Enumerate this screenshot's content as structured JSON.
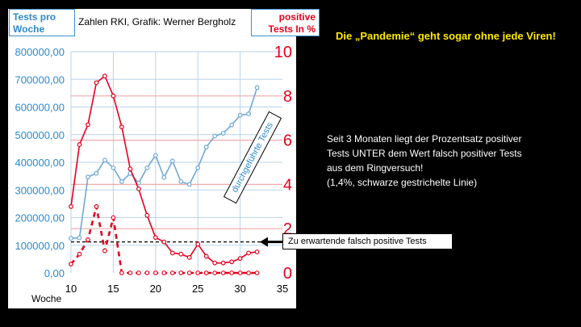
{
  "left_title": "Tests pro Woche",
  "credit": "Zahlen RKI, Grafik: Werner Bergholz",
  "right_title": "positive Tests In %",
  "headline": "Die „Pandemie“ geht sogar ohne jede Viren!",
  "commentary": [
    "Seit 3 Monaten liegt der Prozentsatz positiver",
    "Tests UNTER dem Wert falsch positiver Tests",
    "aus dem Ringversuch!",
    "(1,4%, schwarze gestrichelte Linie)"
  ],
  "callout": "Zu erwartende falsch positive Tests",
  "xlabel": "Woche",
  "rotated_label": "durchgeführte Tests",
  "colors": {
    "tests": "#6fa8d6",
    "positive": "#e4001b",
    "reference": "#000000",
    "left_axis": "#2e89c9",
    "right_axis": "#e4001b",
    "background": "#000000",
    "headline": "#ffe800"
  },
  "chart_data": {
    "type": "line",
    "x_ticks": [
      10,
      15,
      20,
      25,
      30,
      35
    ],
    "y_left_ticks": [
      "0,00",
      "100000,00",
      "200000,00",
      "300000,00",
      "400000,00",
      "500000,00",
      "600000,00",
      "700000,00",
      "800000,00"
    ],
    "y_left_range": [
      0,
      800000
    ],
    "y_right_ticks": [
      "0",
      "2",
      "4",
      "6",
      "8",
      "10"
    ],
    "y_right_range": [
      0,
      10
    ],
    "xlim": [
      10,
      35
    ],
    "series": [
      {
        "axis": "left",
        "style": "solid-blue",
        "x": [
          10,
          11,
          12,
          13,
          14,
          15,
          16,
          17,
          18,
          19,
          20,
          21,
          22,
          23,
          24,
          25,
          26,
          27,
          28,
          29,
          30,
          31,
          32
        ],
        "y": [
          125000,
          127000,
          347000,
          360000,
          408000,
          380000,
          330000,
          360000,
          325000,
          380000,
          425000,
          345000,
          405000,
          330000,
          320000,
          380000,
          455000,
          495000,
          505000,
          535000,
          570000,
          575000,
          670000
        ]
      },
      {
        "axis": "right",
        "style": "solid-red",
        "x": [
          10,
          11,
          12,
          13,
          14,
          15,
          16,
          17,
          18,
          19,
          20,
          21,
          22,
          23,
          24,
          25,
          26,
          27,
          28,
          29,
          30,
          31,
          32
        ],
        "y": [
          3.0,
          5.8,
          6.7,
          8.6,
          8.9,
          8.0,
          6.6,
          4.7,
          3.8,
          2.6,
          1.6,
          1.4,
          0.9,
          0.85,
          0.7,
          1.3,
          0.75,
          0.45,
          0.45,
          0.5,
          0.65,
          0.9,
          0.95
        ]
      },
      {
        "axis": "right",
        "style": "dashed-red",
        "x": [
          10,
          11,
          12,
          13,
          14,
          15,
          16,
          17,
          18,
          19,
          20,
          21,
          22,
          23,
          24,
          25,
          26,
          27,
          28,
          29,
          30,
          31,
          32
        ],
        "y": [
          0.4,
          0.85,
          1.5,
          3.0,
          1.0,
          2.5,
          0,
          0,
          0,
          0,
          0,
          0,
          0,
          0,
          0,
          0,
          0,
          0,
          0,
          0,
          0,
          0,
          0
        ]
      }
    ],
    "reference_line": {
      "axis": "left",
      "y": 112000,
      "style": "dashed-black"
    },
    "grid": true,
    "grid_lines_left": [
      100000,
      200000,
      300000,
      400000,
      500000,
      600000,
      700000,
      800000
    ],
    "grid_lines_right": [
      2,
      4,
      6,
      8
    ]
  }
}
